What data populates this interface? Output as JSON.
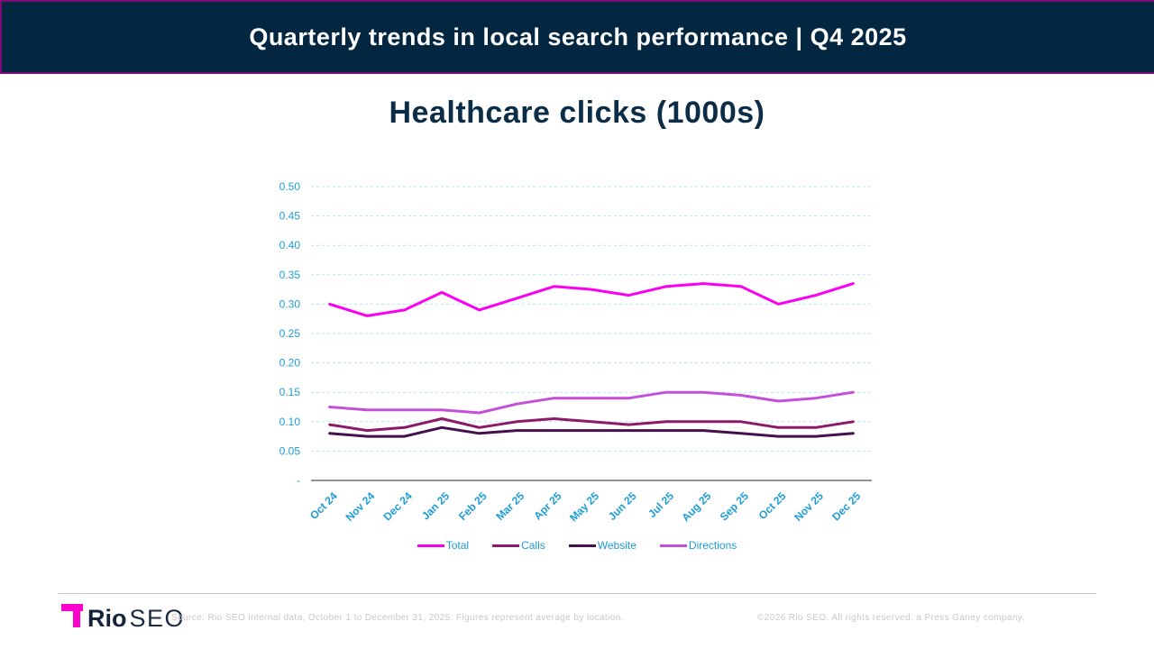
{
  "header": {
    "title": "Quarterly trends in local search performance | Q4 2025"
  },
  "chart": {
    "title": "Healthcare clicks (1000s)"
  },
  "chart_data": {
    "type": "line",
    "title": "Healthcare clicks (1000s)",
    "categories": [
      "Oct 24",
      "Nov 24",
      "Dec 24",
      "Jan 25",
      "Feb 25",
      "Mar 25",
      "Apr 25",
      "May 25",
      "Jun 25",
      "Jul 25",
      "Aug 25",
      "Sep 25",
      "Oct 25",
      "Nov 25",
      "Dec 25"
    ],
    "series": [
      {
        "name": "Total",
        "color": "#FB00F0",
        "values": [
          0.3,
          0.28,
          0.29,
          0.32,
          0.29,
          0.31,
          0.33,
          0.325,
          0.315,
          0.33,
          0.335,
          0.33,
          0.3,
          0.315,
          0.335
        ]
      },
      {
        "name": "Calls",
        "color": "#8C1A68",
        "values": [
          0.095,
          0.085,
          0.09,
          0.105,
          0.09,
          0.1,
          0.105,
          0.1,
          0.095,
          0.1,
          0.1,
          0.1,
          0.09,
          0.09,
          0.1
        ]
      },
      {
        "name": "Website",
        "color": "#45104E",
        "values": [
          0.08,
          0.075,
          0.075,
          0.09,
          0.08,
          0.085,
          0.085,
          0.085,
          0.085,
          0.085,
          0.085,
          0.08,
          0.075,
          0.075,
          0.08
        ]
      },
      {
        "name": "Directions",
        "color": "#C44FD8",
        "values": [
          0.125,
          0.12,
          0.12,
          0.12,
          0.115,
          0.13,
          0.14,
          0.14,
          0.14,
          0.15,
          0.15,
          0.145,
          0.135,
          0.14,
          0.15
        ]
      }
    ],
    "ylim": [
      0,
      0.5
    ],
    "ytick_step": 0.05,
    "ytick_labels": [
      "-",
      "0.05",
      "0.10",
      "0.15",
      "0.20",
      "0.25",
      "0.30",
      "0.35",
      "0.40",
      "0.45",
      "0.50"
    ],
    "grid": "horizontal-dashed",
    "legend_position": "bottom",
    "axis_label_color": "#1E9CD7",
    "gridline_color": "#B5E3F5",
    "axis_line_color": "#808080"
  },
  "footer": {
    "logo_rio": "Rio",
    "logo_seo": "SEO",
    "source": "Source: Rio SEO internal data, October 1 to December 31, 2025. Figures represent average by location.",
    "copyright": "©2026 Rio SEO.  All rights reserved. a Press Ganey company."
  }
}
